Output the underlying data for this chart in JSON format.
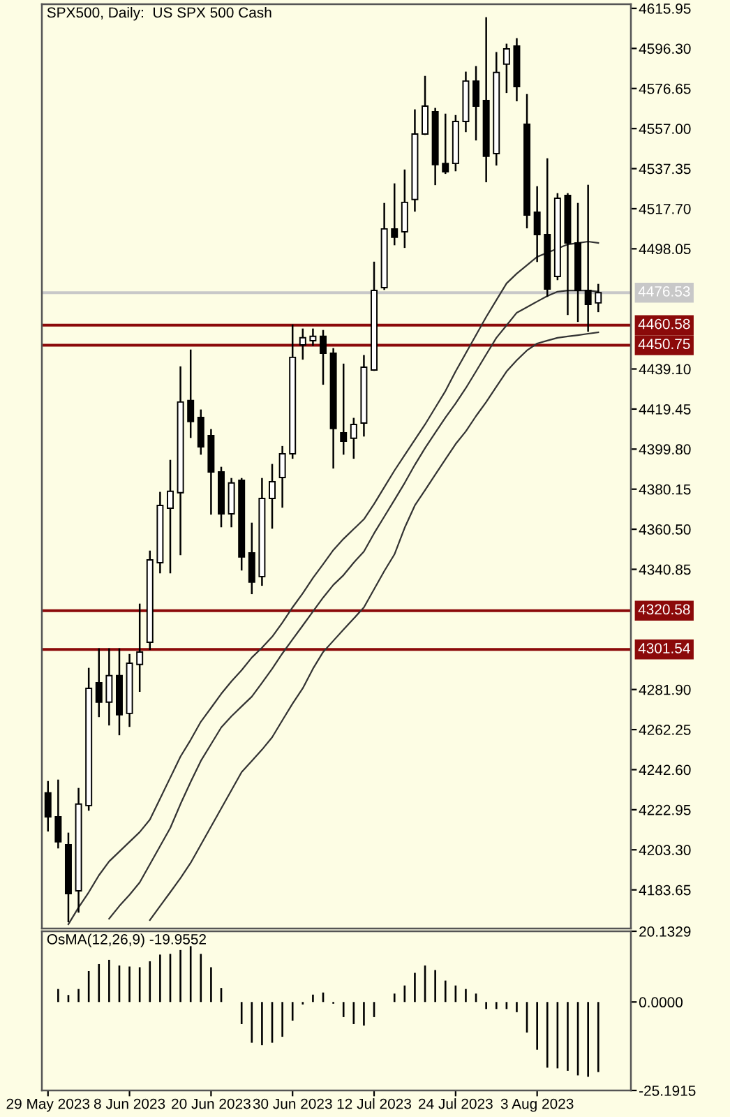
{
  "chart_data": [
    {
      "type": "candlestick",
      "title": "SPX500, Daily:  US SPX 500 Cash",
      "categories": [
        null,
        null,
        null,
        null,
        null,
        null,
        null,
        null,
        null,
        null,
        null,
        null,
        null,
        null,
        null,
        null,
        null,
        null,
        null,
        null,
        null,
        null,
        null,
        null,
        null,
        null,
        null,
        null,
        null,
        null,
        null,
        null,
        null,
        null,
        null,
        null,
        null,
        null,
        null,
        null,
        null,
        null,
        null,
        null,
        null,
        null,
        null,
        null,
        null,
        null,
        null,
        null,
        null,
        null,
        null
      ],
      "ohlc": [
        [
          4231.2,
          4236.6,
          4212.7,
          4219.5
        ],
        [
          4219.5,
          4237.3,
          4204.4,
          4207.2
        ],
        [
          4205.8,
          4211.3,
          4168.2,
          4181.8
        ],
        [
          4183.2,
          4233.2,
          4172.9,
          4225.7
        ],
        [
          4225.0,
          4292.1,
          4222.9,
          4282.5
        ],
        [
          4285.2,
          4301.7,
          4268.8,
          4275.7
        ],
        [
          4275.7,
          4301.7,
          4264.7,
          4288.7
        ],
        [
          4288.7,
          4301.7,
          4259.9,
          4269.5
        ],
        [
          4270.2,
          4298.9,
          4264.0,
          4294.8
        ],
        [
          4294.2,
          4323.6,
          4281.2,
          4300.3
        ],
        [
          4305.1,
          4349.6,
          4301.7,
          4345.5
        ],
        [
          4344.1,
          4378.4,
          4339.3,
          4372.2
        ],
        [
          4370.8,
          4394.1,
          4339.3,
          4379.1
        ],
        [
          4378.4,
          4440.0,
          4348.2,
          4422.9
        ],
        [
          4423.6,
          4448.2,
          4405.7,
          4413.3
        ],
        [
          4415.3,
          4418.8,
          4397.5,
          4400.9
        ],
        [
          4406.4,
          4409.2,
          4368.1,
          4388.6
        ],
        [
          4388.6,
          4390.7,
          4361.9,
          4368.1
        ],
        [
          4368.1,
          4385.2,
          4361.9,
          4383.2
        ],
        [
          4384.5,
          4385.2,
          4340.7,
          4346.9
        ],
        [
          4348.9,
          4363.3,
          4329.1,
          4334.6
        ],
        [
          4337.3,
          4385.2,
          4333.2,
          4375.6
        ],
        [
          4375.6,
          4392.1,
          4361.2,
          4383.8
        ],
        [
          4385.9,
          4400.9,
          4371.5,
          4397.5
        ],
        [
          4397.5,
          4460.5,
          4395.5,
          4444.8
        ],
        [
          4450.9,
          4458.5,
          4444.1,
          4454.4
        ],
        [
          4453.0,
          4458.5,
          4450.9,
          4455.1
        ],
        [
          4455.1,
          4457.8,
          4431.8,
          4446.8
        ],
        [
          4446.8,
          4448.9,
          4390.7,
          4409.9
        ],
        [
          4407.8,
          4441.3,
          4397.5,
          4403.7
        ],
        [
          4405.1,
          4414.7,
          4395.5,
          4411.9
        ],
        [
          4412.6,
          4445.5,
          4406.4,
          4440.0
        ],
        [
          4438.6,
          4491.3,
          4438.6,
          4477.6
        ],
        [
          4479.0,
          4520.1,
          4478.3,
          4507.8
        ],
        [
          4507.8,
          4529.7,
          4500.2,
          4503.7
        ],
        [
          4506.4,
          4536.5,
          4498.9,
          4520.8
        ],
        [
          4522.2,
          4566.0,
          4516.7,
          4554.3
        ],
        [
          4554.3,
          4582.4,
          4554.3,
          4568.0
        ],
        [
          4565.3,
          4566.7,
          4529.7,
          4539.3
        ],
        [
          4539.9,
          4563.9,
          4535.2,
          4535.8
        ],
        [
          4539.9,
          4563.2,
          4536.5,
          4560.5
        ],
        [
          4560.5,
          4584.5,
          4555.7,
          4580.3
        ],
        [
          4580.3,
          4587.2,
          4551.6,
          4568.0
        ],
        [
          4570.8,
          4611.2,
          4531.1,
          4543.4
        ],
        [
          4544.7,
          4594.1,
          4539.3,
          4584.5
        ],
        [
          4588.6,
          4598.2,
          4574.9,
          4596.1
        ],
        [
          4597.5,
          4600.9,
          4570.8,
          4577.6
        ],
        [
          4559.1,
          4573.5,
          4508.5,
          4514.6
        ],
        [
          4516.0,
          4528.3,
          4492.0,
          4505.0
        ],
        [
          4505.0,
          4542.0,
          4474.9,
          4478.3
        ],
        [
          4484.5,
          4524.9,
          4483.1,
          4522.8
        ],
        [
          4524.2,
          4524.9,
          4466.0,
          4500.9
        ],
        [
          4500.9,
          4520.1,
          4462.6,
          4477.6
        ],
        [
          4477.6,
          4529.0,
          4457.8,
          4470.8
        ],
        [
          4471.5,
          4480.4,
          4467.4,
          4476.53
        ]
      ],
      "series": [
        {
          "type": "line",
          "color": "#333333",
          "values": [
            null,
            null,
            4166.8,
            4175.0,
            4182.5,
            4190.8,
            4197.6,
            4202.4,
            4207.2,
            4212.0,
            4218.1,
            4228.4,
            4238.7,
            4249.0,
            4257.2,
            4266.1,
            4272.9,
            4279.8,
            4285.9,
            4291.4,
            4297.6,
            4302.4,
            4307.8,
            4314.7,
            4322.2,
            4329.1,
            4336.6,
            4343.4,
            4350.3,
            4355.8,
            4360.6,
            4365.4,
            4372.9,
            4381.1,
            4389.3,
            4396.9,
            4404.4,
            4411.9,
            4420.1,
            4428.3,
            4437.9,
            4446.8,
            4455.7,
            4464.6,
            4472.9,
            4481.1,
            4485.9,
            4490.0,
            4494.1,
            4496.1,
            4498.2,
            4500.2,
            4500.9,
            4501.6,
            4500.9
          ]
        },
        {
          "type": "line",
          "color": "#333333",
          "values": [
            null,
            null,
            null,
            null,
            null,
            null,
            4169.5,
            4175.7,
            4181.2,
            4187.3,
            4196.2,
            4205.1,
            4214.0,
            4225.7,
            4236.6,
            4246.9,
            4255.1,
            4263.3,
            4268.8,
            4273.6,
            4278.4,
            4285.2,
            4292.1,
            4299.6,
            4306.5,
            4313.3,
            4320.2,
            4327.0,
            4333.2,
            4338.0,
            4344.1,
            4349.6,
            4358.5,
            4366.7,
            4374.9,
            4383.2,
            4392.1,
            4400.3,
            4407.8,
            4415.3,
            4422.2,
            4429.7,
            4437.9,
            4446.2,
            4454.4,
            4460.5,
            4466.7,
            4469.4,
            4472.2,
            4474.9,
            4477.0,
            4477.6,
            4477.6,
            4477.6,
            4477.0
          ]
        },
        {
          "type": "line",
          "color": "#333333",
          "values": [
            null,
            null,
            null,
            null,
            null,
            null,
            null,
            null,
            null,
            null,
            4168.8,
            4175.7,
            4182.5,
            4189.4,
            4196.9,
            4205.8,
            4214.7,
            4223.6,
            4232.5,
            4241.4,
            4246.9,
            4252.4,
            4258.5,
            4266.8,
            4275.0,
            4282.5,
            4292.1,
            4300.3,
            4305.8,
            4311.3,
            4316.7,
            4322.2,
            4331.1,
            4340.0,
            4348.2,
            4361.2,
            4372.2,
            4379.7,
            4387.3,
            4394.8,
            4402.3,
            4408.5,
            4416.0,
            4422.9,
            4430.4,
            4437.9,
            4443.4,
            4448.2,
            4451.6,
            4453.0,
            4454.4,
            4455.1,
            4455.7,
            4456.4,
            4457.1
          ]
        }
      ],
      "ylim": [
        4164.7,
        4618.0
      ],
      "yticks": [
        {
          "value": 4615.95,
          "label": "4615.95"
        },
        {
          "value": 4596.3,
          "label": "4596.30"
        },
        {
          "value": 4576.65,
          "label": "4576.65"
        },
        {
          "value": 4557.0,
          "label": "4557.00"
        },
        {
          "value": 4537.35,
          "label": "4537.35"
        },
        {
          "value": 4517.7,
          "label": "4517.70"
        },
        {
          "value": 4498.05,
          "label": "4498.05"
        },
        {
          "value": 4439.1,
          "label": "4439.10"
        },
        {
          "value": 4419.45,
          "label": "4419.45"
        },
        {
          "value": 4399.8,
          "label": "4399.80"
        },
        {
          "value": 4380.15,
          "label": "4380.15"
        },
        {
          "value": 4360.5,
          "label": "4360.50"
        },
        {
          "value": 4340.85,
          "label": "4340.85"
        },
        {
          "value": 4281.9,
          "label": "4281.90"
        },
        {
          "value": 4262.25,
          "label": "4262.25"
        },
        {
          "value": 4242.6,
          "label": "4242.60"
        },
        {
          "value": 4222.95,
          "label": "4222.95"
        },
        {
          "value": 4203.3,
          "label": "4203.30"
        },
        {
          "value": 4183.65,
          "label": "4183.65"
        }
      ],
      "ref_lines": [
        {
          "axis": "y",
          "value": 4476.53,
          "label": "4476.53",
          "color": "#c8c8c8"
        },
        {
          "axis": "y",
          "value": 4460.58,
          "label": "4460.58",
          "color": "#8b0a0a"
        },
        {
          "axis": "y",
          "value": 4450.75,
          "label": "4450.75",
          "color": "#8b0a0a"
        },
        {
          "axis": "y",
          "value": 4320.58,
          "label": "4320.58",
          "color": "#8b0a0a"
        },
        {
          "axis": "y",
          "value": 4301.54,
          "label": "4301.54",
          "color": "#8b0a0a"
        }
      ],
      "tick_labels": "y"
    },
    {
      "type": "bar",
      "title": "OsMA(12,26,9) -19.9552",
      "categories": [
        "29 May 2023",
        null,
        null,
        null,
        null,
        null,
        null,
        null,
        "8 Jun 2023",
        null,
        null,
        null,
        null,
        null,
        null,
        null,
        "20 Jun 2023",
        null,
        null,
        null,
        null,
        null,
        null,
        null,
        "30 Jun 2023",
        null,
        null,
        null,
        null,
        null,
        null,
        null,
        "12 Jul 2023",
        null,
        null,
        null,
        null,
        null,
        null,
        null,
        "24 Jul 2023",
        null,
        null,
        null,
        null,
        null,
        null,
        null,
        "3 Aug 2023",
        null,
        null,
        null,
        null,
        null,
        null
      ],
      "values": [
        null,
        3.7,
        2.0,
        3.7,
        8.8,
        10.8,
        12.0,
        10.4,
        10.1,
        9.9,
        11.6,
        13.5,
        13.7,
        14.8,
        15.9,
        13.7,
        9.9,
        4.0,
        null,
        -6.3,
        -11.6,
        -12.3,
        -11.6,
        -9.9,
        -5.3,
        -0.7,
        2.1,
        2.7,
        -0.5,
        -4.3,
        -6.3,
        -6.7,
        -4.3,
        null,
        2.4,
        4.7,
        8.3,
        10.4,
        9.1,
        6.1,
        4.7,
        3.7,
        2.4,
        -2.0,
        -2.0,
        -2.0,
        -2.9,
        -8.7,
        -13.6,
        -18.7,
        -18.9,
        -19.6,
        -20.9,
        -21.3,
        -19.9552
      ],
      "color": "#000000",
      "ylim": [
        -25.1915,
        20.1329
      ],
      "yticks": [
        {
          "value": 20.1329,
          "label": "20.1329"
        },
        {
          "value": 0,
          "label": "0.0000"
        },
        {
          "value": -25.1915,
          "label": "-25.1915"
        }
      ]
    }
  ]
}
